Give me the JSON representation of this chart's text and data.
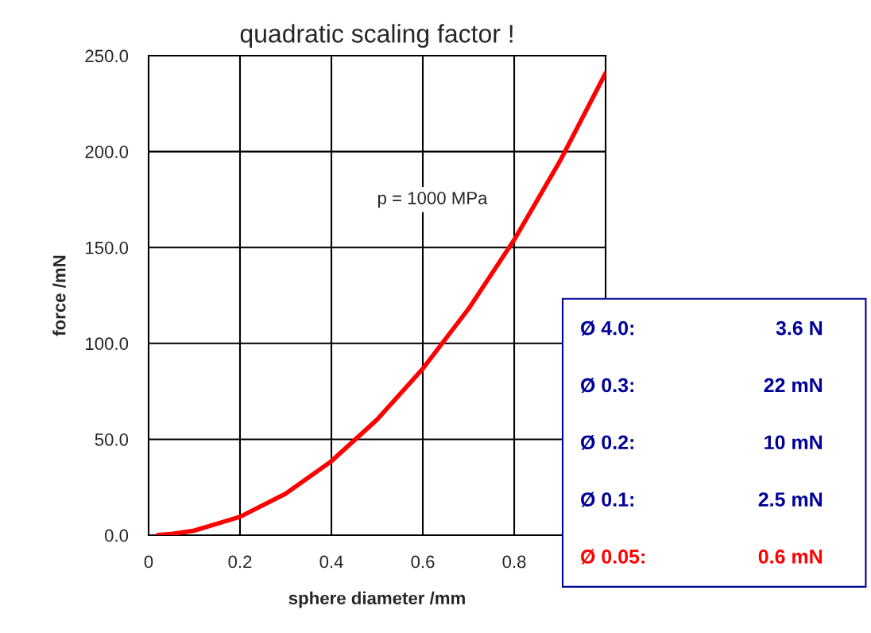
{
  "chart_data": {
    "type": "line",
    "title": "quadratic scaling factor !",
    "xlabel": "sphere diameter /mm",
    "ylabel": "force /mN",
    "x": [
      0.02,
      0.05,
      0.1,
      0.2,
      0.3,
      0.4,
      0.5,
      0.6,
      0.7,
      0.8,
      0.9,
      1.0
    ],
    "series": [
      {
        "color": "#ff0000",
        "values": [
          0.1,
          0.6,
          2.4,
          9.6,
          21.7,
          38.6,
          60.3,
          86.8,
          118,
          154,
          195,
          241
        ]
      }
    ],
    "xlim": [
      0,
      1
    ],
    "xticks": [
      0,
      0.2,
      0.4,
      0.6,
      0.8,
      {
        "value": 1,
        "label": null
      }
    ],
    "ylim": [
      0,
      250
    ],
    "yticks": [
      {
        "value": 0,
        "label": "0.0"
      },
      {
        "value": 50,
        "label": "50.0"
      },
      {
        "value": 100,
        "label": "100.0"
      },
      {
        "value": 150,
        "label": "150.0"
      },
      {
        "value": 200,
        "label": "200.0"
      },
      {
        "value": 250,
        "label": "250.0"
      }
    ],
    "grid": true,
    "marker": "none",
    "line_style": "solid",
    "annotations": [
      "p = 1000 MPa",
      "Ø 4.0:",
      "3.6 N",
      "Ø 0.3:",
      "22 mN",
      "Ø 0.2:",
      "10 mN",
      "Ø 0.1:",
      "2.5 mN",
      "Ø 0.05:",
      "0.6 mN"
    ]
  }
}
